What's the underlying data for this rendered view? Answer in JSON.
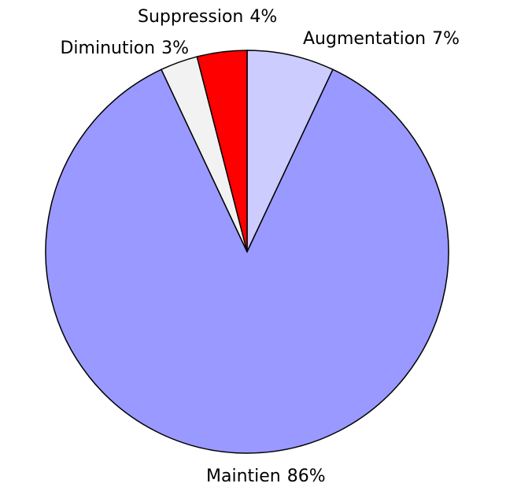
{
  "chart_data": {
    "type": "pie",
    "categories": [
      "Augmentation",
      "Maintien",
      "Diminution",
      "Suppression"
    ],
    "values": [
      7,
      86,
      3,
      4
    ],
    "value_labels": [
      "7%",
      "86%",
      "3%",
      "4%"
    ],
    "colors": [
      "#ccccff",
      "#9999ff",
      "#f2f2f2",
      "#ff0000"
    ]
  }
}
